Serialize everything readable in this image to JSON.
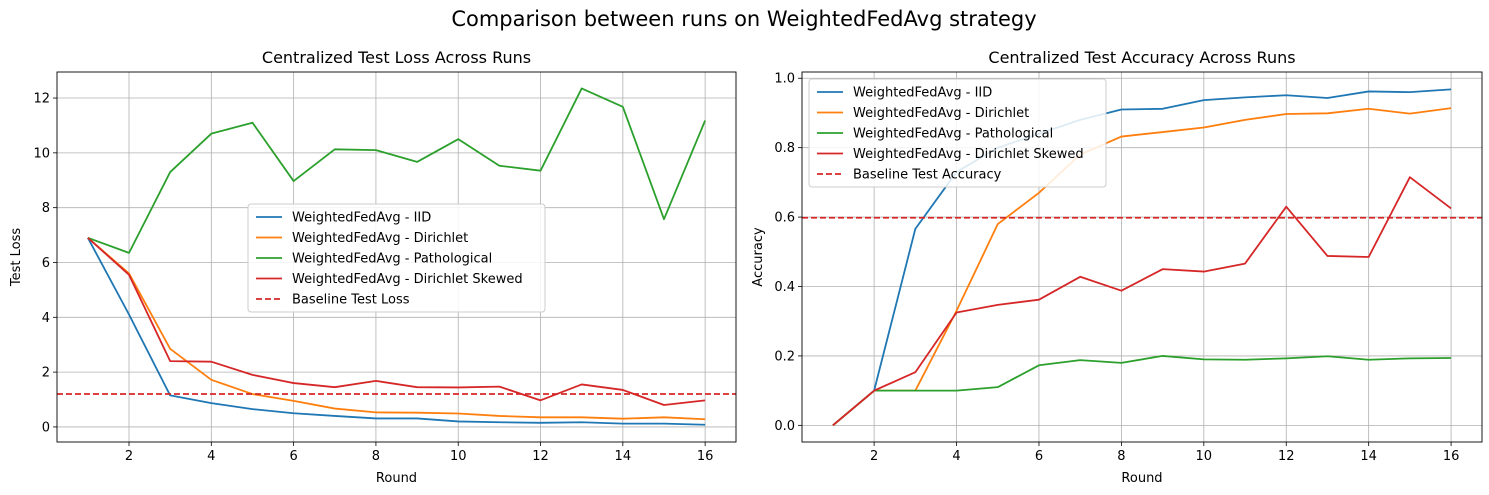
{
  "suptitle": "Comparison between runs on WeightedFedAvg strategy",
  "chart_data": [
    {
      "type": "line",
      "title": "Centralized Test Loss Across Runs",
      "xlabel": "Round",
      "ylabel": "Test Loss",
      "xlim": [
        0.25,
        16.75
      ],
      "ylim": [
        -0.55,
        12.95
      ],
      "xticks": [
        2,
        4,
        6,
        8,
        10,
        12,
        14,
        16
      ],
      "yticks": [
        0,
        2,
        4,
        6,
        8,
        10,
        12
      ],
      "grid": true,
      "legend_position": "center",
      "x": [
        1,
        2,
        3,
        4,
        5,
        6,
        7,
        8,
        9,
        10,
        11,
        12,
        13,
        14,
        15,
        16
      ],
      "series": [
        {
          "name": "WeightedFedAvg - IID",
          "color": "#1f77b4",
          "style": "solid",
          "values": [
            6.9,
            4.1,
            1.15,
            0.87,
            0.65,
            0.5,
            0.4,
            0.31,
            0.31,
            0.2,
            0.17,
            0.15,
            0.17,
            0.12,
            0.12,
            0.08
          ]
        },
        {
          "name": "WeightedFedAvg - Dirichlet",
          "color": "#ff7f0e",
          "style": "solid",
          "values": [
            6.9,
            5.6,
            2.85,
            1.72,
            1.2,
            0.95,
            0.67,
            0.53,
            0.52,
            0.49,
            0.4,
            0.35,
            0.35,
            0.3,
            0.35,
            0.28
          ]
        },
        {
          "name": "WeightedFedAvg - Pathological",
          "color": "#2ca02c",
          "style": "solid",
          "values": [
            6.9,
            6.35,
            9.3,
            10.7,
            11.1,
            8.97,
            10.13,
            10.1,
            9.67,
            10.5,
            9.53,
            9.35,
            12.35,
            11.68,
            7.58,
            11.18
          ]
        },
        {
          "name": "WeightedFedAvg - Dirichlet Skewed",
          "color": "#d62728",
          "style": "solid",
          "values": [
            6.9,
            5.55,
            2.4,
            2.38,
            1.9,
            1.6,
            1.45,
            1.68,
            1.45,
            1.44,
            1.47,
            0.97,
            1.55,
            1.35,
            0.8,
            0.97
          ]
        }
      ],
      "baseline": {
        "name": "Baseline Test Loss",
        "color": "#d62728",
        "style": "dashed",
        "value": 1.2
      }
    },
    {
      "type": "line",
      "title": "Centralized Test Accuracy Across Runs",
      "xlabel": "Round",
      "ylabel": "Accuracy",
      "xlim": [
        0.25,
        16.75
      ],
      "ylim": [
        -0.048,
        1.018
      ],
      "xticks": [
        2,
        4,
        6,
        8,
        10,
        12,
        14,
        16
      ],
      "yticks": [
        0.0,
        0.2,
        0.4,
        0.6,
        0.8,
        1.0
      ],
      "grid": true,
      "legend_position": "upper left",
      "x": [
        1,
        2,
        3,
        4,
        5,
        6,
        7,
        8,
        9,
        10,
        11,
        12,
        13,
        14,
        15,
        16
      ],
      "series": [
        {
          "name": "WeightedFedAvg - IID",
          "color": "#1f77b4",
          "style": "solid",
          "values": [
            0.0,
            0.1,
            0.566,
            0.73,
            0.8,
            0.84,
            0.88,
            0.91,
            0.912,
            0.937,
            0.945,
            0.951,
            0.943,
            0.962,
            0.96,
            0.968
          ]
        },
        {
          "name": "WeightedFedAvg - Dirichlet",
          "color": "#ff7f0e",
          "style": "solid",
          "values": [
            0.0,
            0.1,
            0.1,
            0.33,
            0.58,
            0.67,
            0.78,
            0.832,
            0.845,
            0.858,
            0.88,
            0.897,
            0.899,
            0.912,
            0.898,
            0.914
          ]
        },
        {
          "name": "WeightedFedAvg - Pathological",
          "color": "#2ca02c",
          "style": "solid",
          "values": [
            0.0,
            0.1,
            0.1,
            0.1,
            0.11,
            0.173,
            0.188,
            0.18,
            0.2,
            0.19,
            0.189,
            0.193,
            0.199,
            0.189,
            0.193,
            0.194
          ]
        },
        {
          "name": "WeightedFedAvg - Dirichlet Skewed",
          "color": "#d62728",
          "style": "solid",
          "values": [
            0.0,
            0.1,
            0.153,
            0.325,
            0.347,
            0.362,
            0.428,
            0.388,
            0.45,
            0.443,
            0.466,
            0.63,
            0.488,
            0.485,
            0.715,
            0.625
          ]
        }
      ],
      "baseline": {
        "name": "Baseline Test Accuracy",
        "color": "#d62728",
        "style": "dashed",
        "value": 0.598
      }
    }
  ]
}
